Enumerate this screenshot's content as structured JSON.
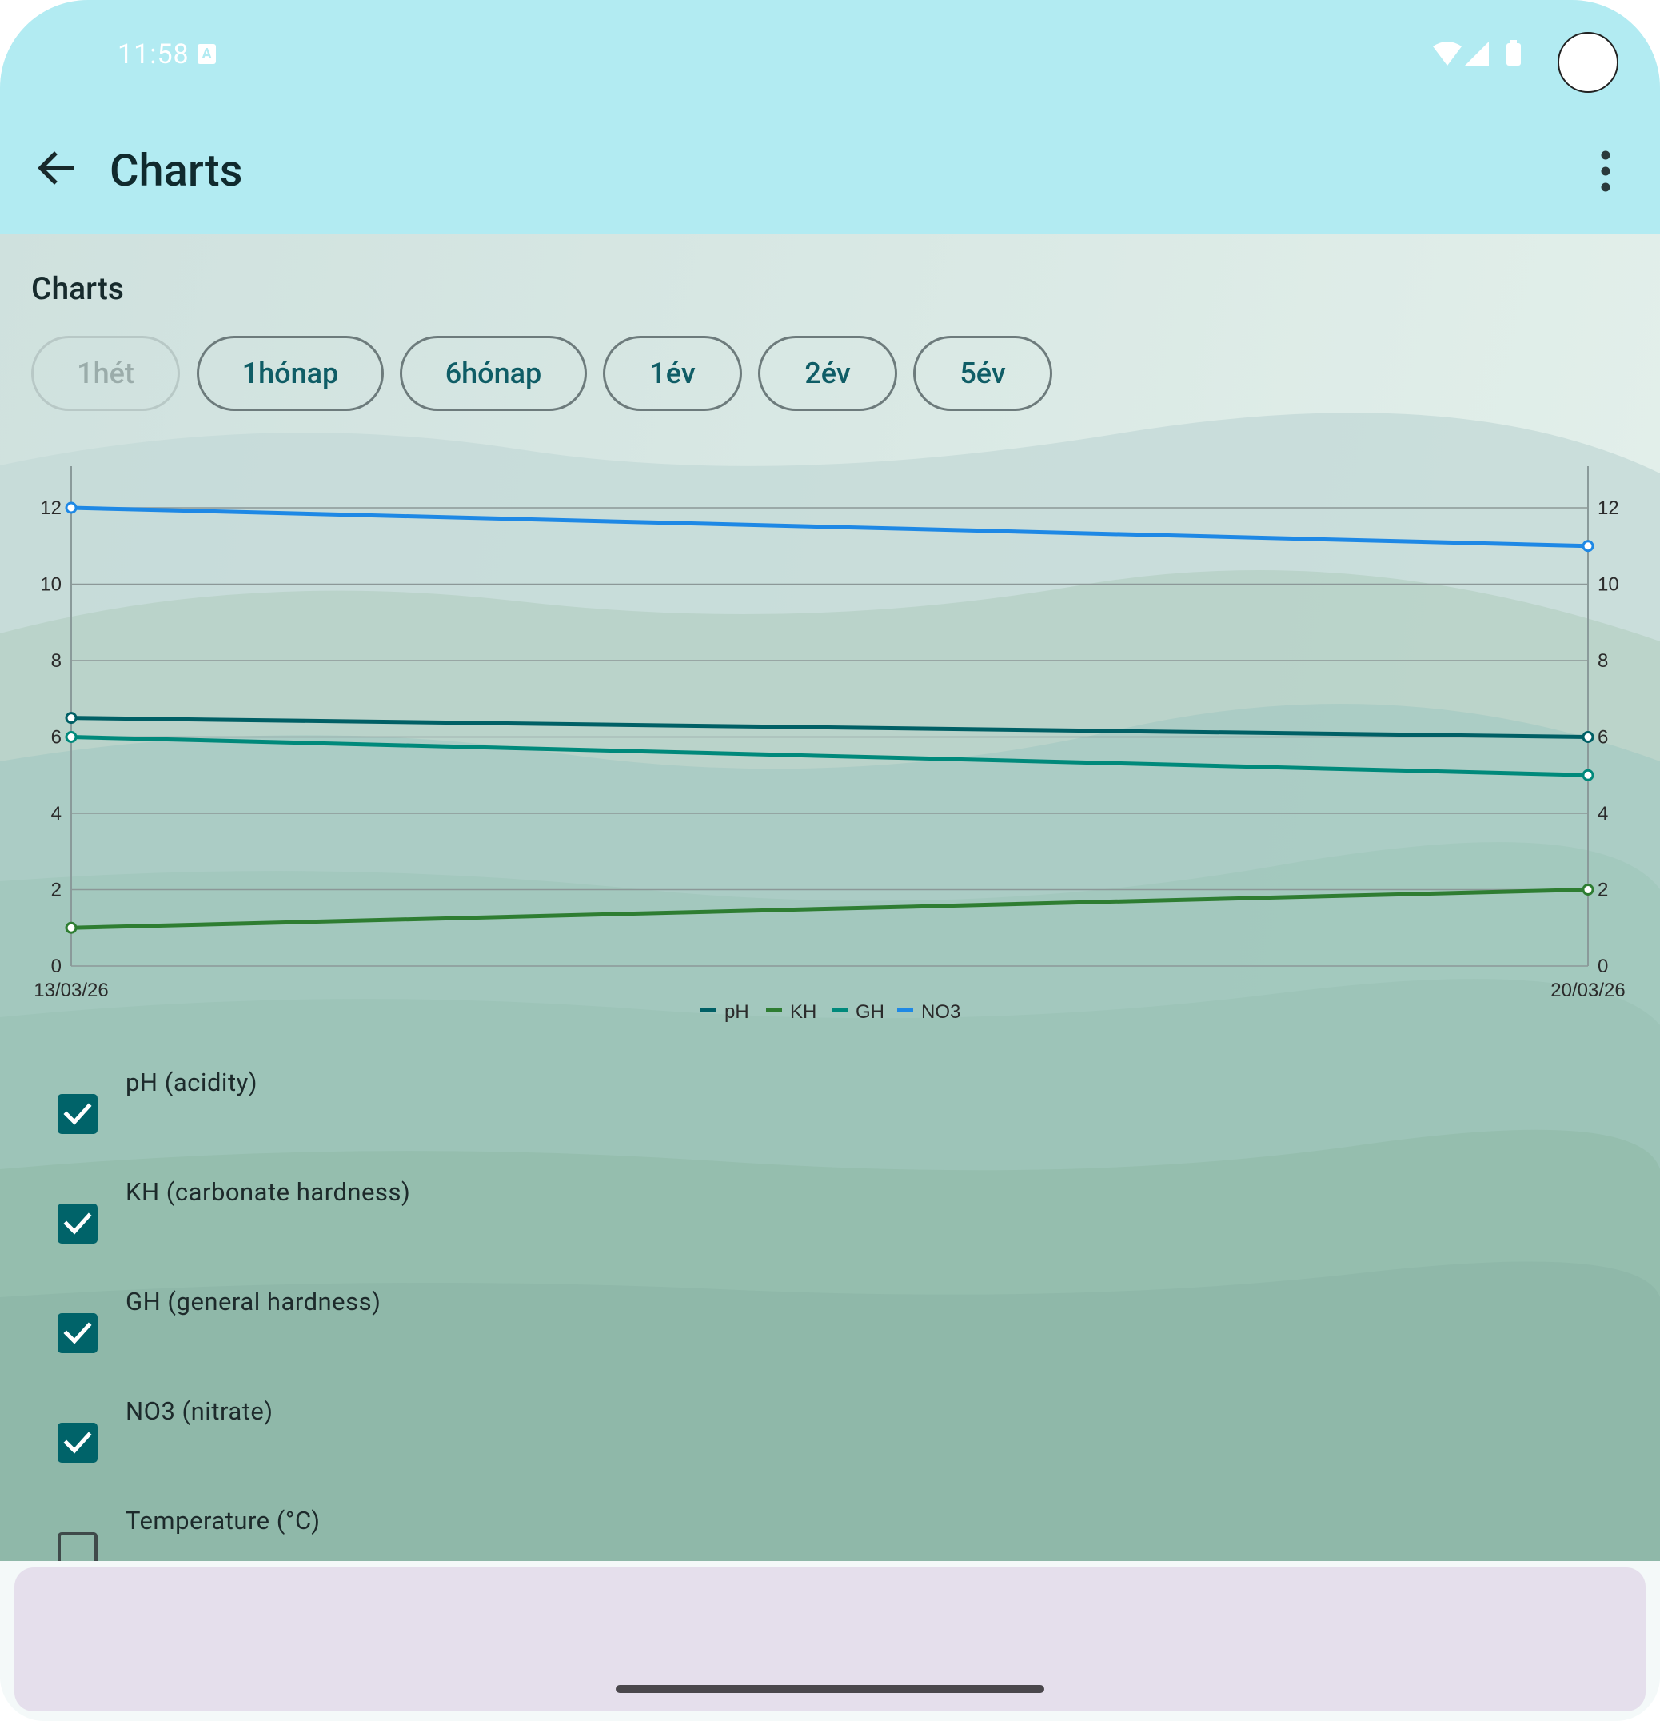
{
  "status_bar": {
    "time": "11:58",
    "notification_icon": "A"
  },
  "toolbar": {
    "title": "Charts",
    "back_icon": "arrow-left-icon",
    "more_icon": "more-vert-icon"
  },
  "page": {
    "section_title": "Charts",
    "range_chips": [
      {
        "label": "1hét",
        "enabled": false
      },
      {
        "label": "1hónap",
        "enabled": true
      },
      {
        "label": "6hónap",
        "enabled": true
      },
      {
        "label": "1év",
        "enabled": true
      },
      {
        "label": "2év",
        "enabled": true
      },
      {
        "label": "5év",
        "enabled": true
      }
    ]
  },
  "chart_data": {
    "type": "line",
    "x": [
      "13/03/26",
      "20/03/26"
    ],
    "ylim": [
      0,
      12
    ],
    "yticks": [
      0,
      2,
      4,
      6,
      8,
      10,
      12
    ],
    "y2ticks": [
      0,
      2,
      4,
      6,
      8,
      10,
      12
    ],
    "grid": true,
    "legend_position": "bottom-center",
    "series": [
      {
        "name": "pH",
        "color": "#005f65",
        "values": [
          6.5,
          6
        ]
      },
      {
        "name": "KH",
        "color": "#2e7d32",
        "values": [
          1,
          2
        ]
      },
      {
        "name": "GH",
        "color": "#00897b",
        "values": [
          6,
          5
        ]
      },
      {
        "name": "NO3",
        "color": "#1e88e5",
        "values": [
          12,
          11
        ]
      }
    ]
  },
  "parameters": [
    {
      "label": "pH (acidity)",
      "checked": true
    },
    {
      "label": "KH (carbonate hardness)",
      "checked": true
    },
    {
      "label": "GH (general hardness)",
      "checked": true
    },
    {
      "label": "NO3 (nitrate)",
      "checked": true
    },
    {
      "label": "Temperature (°C)",
      "checked": false
    }
  ],
  "colors": {
    "toolbar": "#b2ebf2",
    "accent": "#006369",
    "chip_text": "#0f5d66",
    "bottom_sheet": "#e5dfec"
  }
}
